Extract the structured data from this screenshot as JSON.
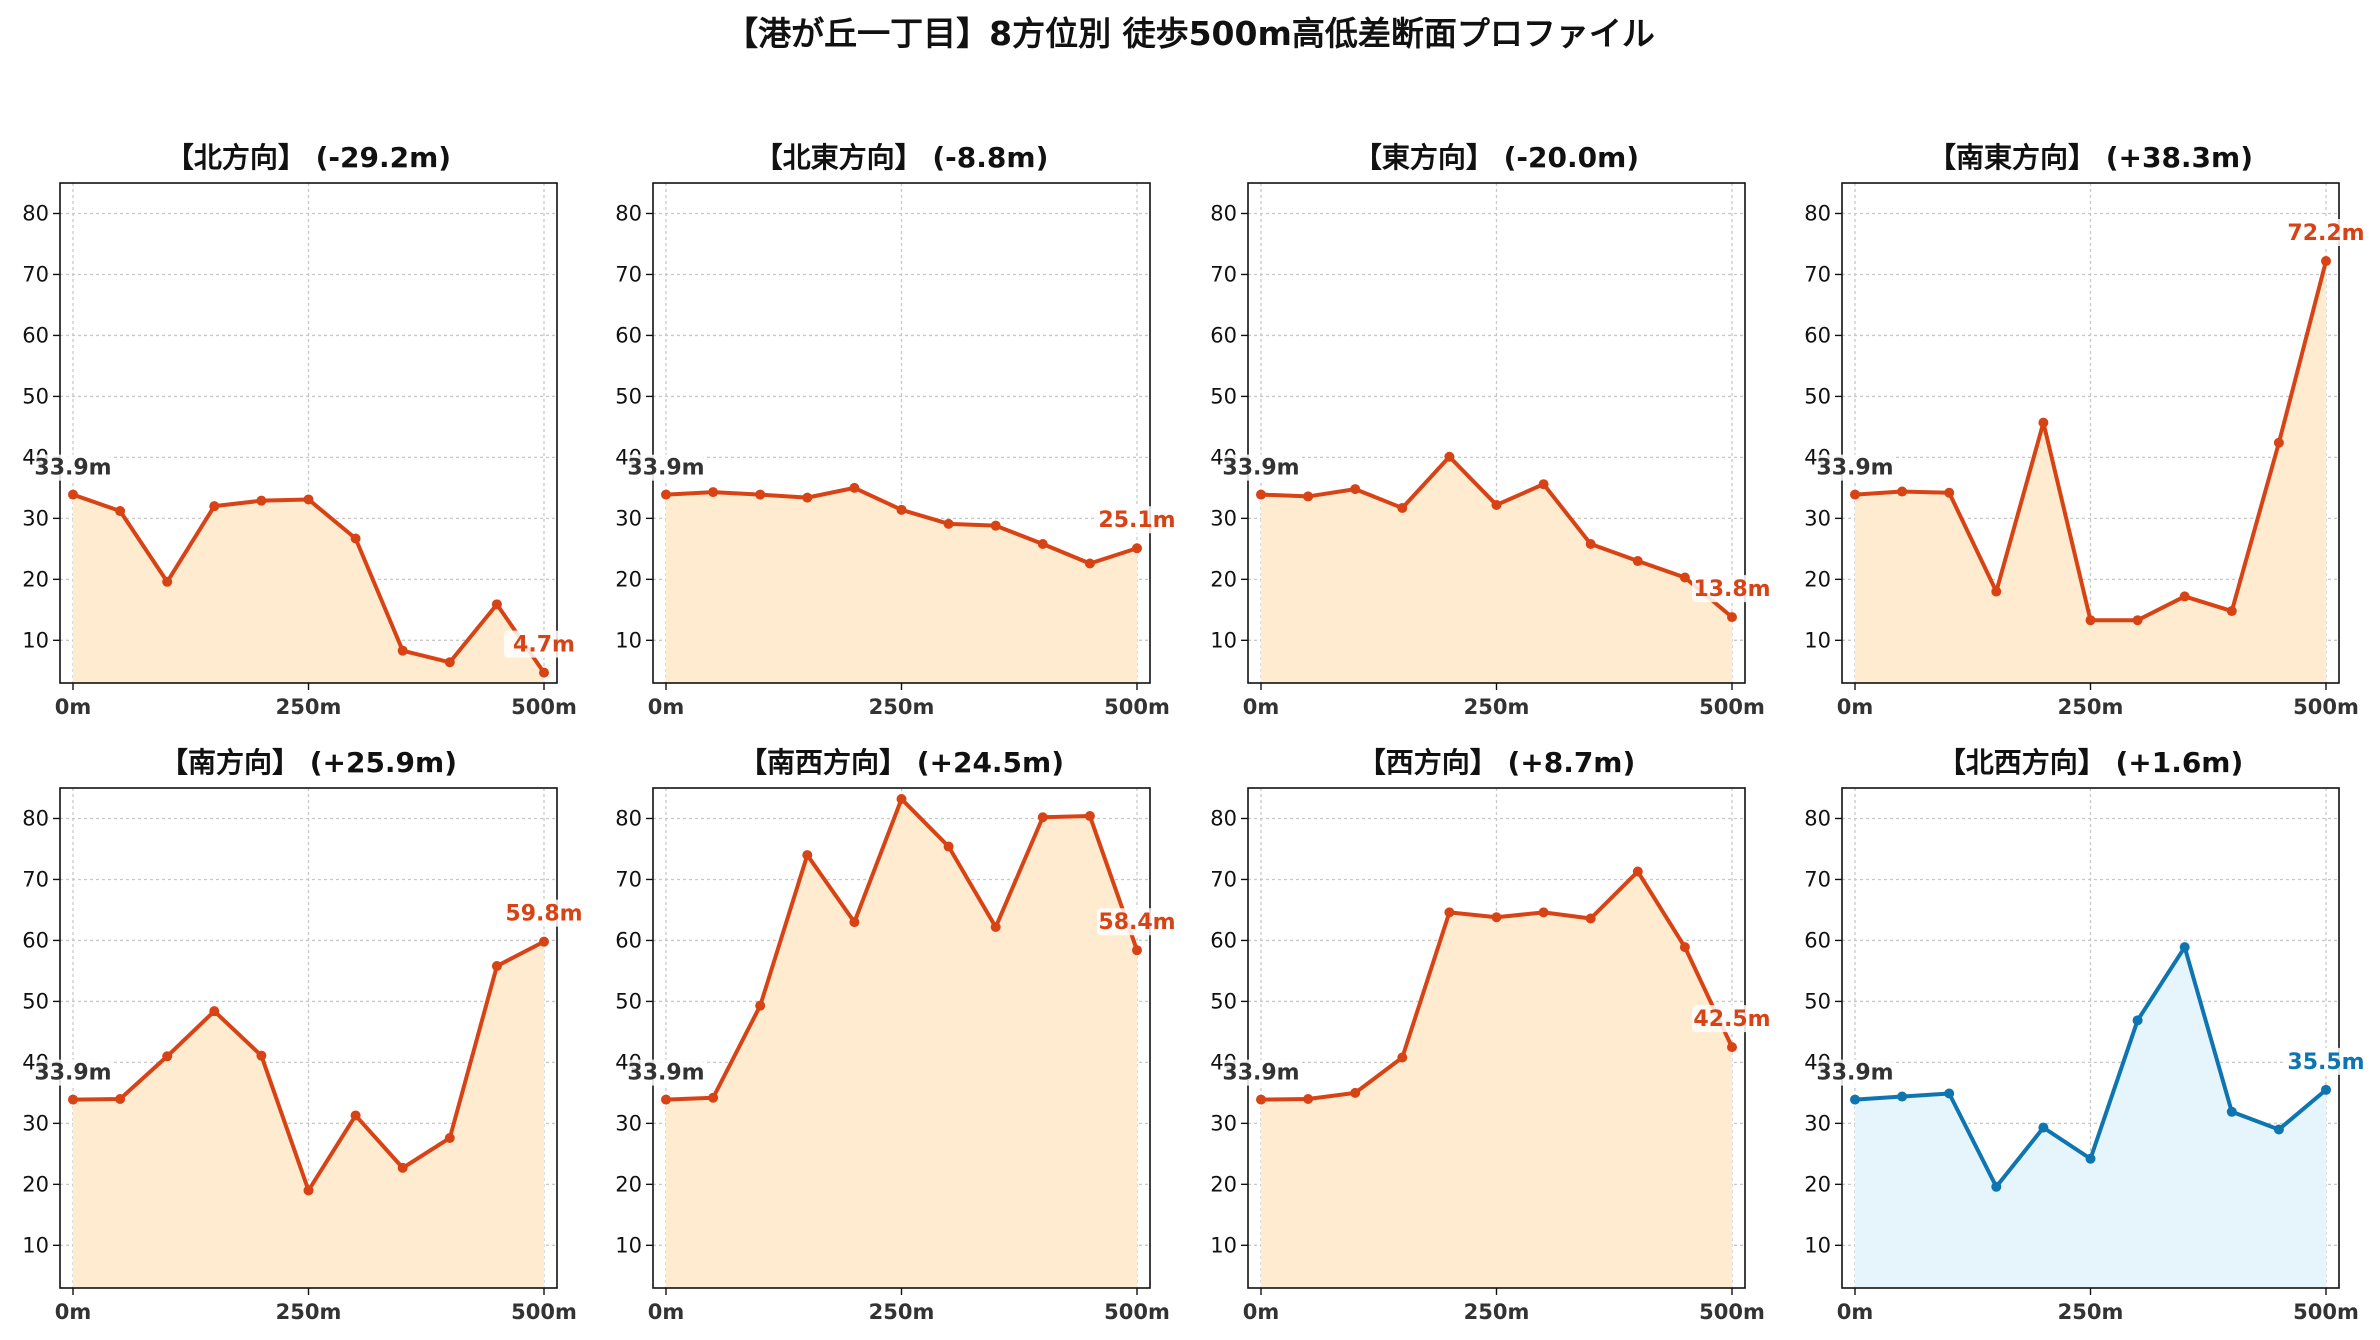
{
  "title": "【港が丘一丁目】8方位別 徒歩500m高低差断面プロファイル",
  "colors": {
    "down_line": "#d84315",
    "down_fill": "#ffebcf",
    "up_line": "#0f75b0",
    "up_fill": "#e6f4fb",
    "start_label": "#333333"
  },
  "chart_data": [
    {
      "type": "area",
      "title": "【北方向】 (-29.2m)",
      "x": [
        0,
        50,
        100,
        150,
        200,
        250,
        300,
        350,
        400,
        450,
        500
      ],
      "xticks": [
        "0m",
        "250m",
        "500m"
      ],
      "yticks": [
        "10",
        "20",
        "30",
        "40",
        "50",
        "60",
        "70",
        "80"
      ],
      "ylim": [
        3,
        85
      ],
      "values": [
        33.9,
        31.2,
        19.6,
        32.0,
        32.9,
        33.1,
        26.7,
        8.3,
        6.4,
        15.9,
        4.7
      ],
      "start_label": "33.9m",
      "end_label": "4.7m",
      "theme": "down"
    },
    {
      "type": "area",
      "title": "【北東方向】 (-8.8m)",
      "x": [
        0,
        50,
        100,
        150,
        200,
        250,
        300,
        350,
        400,
        450,
        500
      ],
      "xticks": [
        "0m",
        "250m",
        "500m"
      ],
      "yticks": [
        "10",
        "20",
        "30",
        "40",
        "50",
        "60",
        "70",
        "80"
      ],
      "ylim": [
        3,
        85
      ],
      "values": [
        33.9,
        34.3,
        33.9,
        33.4,
        35.0,
        31.4,
        29.1,
        28.8,
        25.8,
        22.6,
        25.1
      ],
      "start_label": "33.9m",
      "end_label": "25.1m",
      "theme": "down"
    },
    {
      "type": "area",
      "title": "【東方向】 (-20.0m)",
      "x": [
        0,
        50,
        100,
        150,
        200,
        250,
        300,
        350,
        400,
        450,
        500
      ],
      "xticks": [
        "0m",
        "250m",
        "500m"
      ],
      "yticks": [
        "10",
        "20",
        "30",
        "40",
        "50",
        "60",
        "70",
        "80"
      ],
      "ylim": [
        3,
        85
      ],
      "values": [
        33.9,
        33.6,
        34.8,
        31.7,
        40.1,
        32.2,
        35.6,
        25.8,
        23.0,
        20.3,
        13.8
      ],
      "start_label": "33.9m",
      "end_label": "13.8m",
      "theme": "down"
    },
    {
      "type": "area",
      "title": "【南東方向】 (+38.3m)",
      "x": [
        0,
        50,
        100,
        150,
        200,
        250,
        300,
        350,
        400,
        450,
        500
      ],
      "xticks": [
        "0m",
        "250m",
        "500m"
      ],
      "yticks": [
        "10",
        "20",
        "30",
        "40",
        "50",
        "60",
        "70",
        "80"
      ],
      "ylim": [
        3,
        85
      ],
      "values": [
        33.9,
        34.4,
        34.2,
        18.0,
        45.7,
        13.3,
        13.3,
        17.2,
        14.8,
        42.4,
        72.2
      ],
      "start_label": "33.9m",
      "end_label": "72.2m",
      "theme": "down"
    },
    {
      "type": "area",
      "title": "【南方向】 (+25.9m)",
      "x": [
        0,
        50,
        100,
        150,
        200,
        250,
        300,
        350,
        400,
        450,
        500
      ],
      "xticks": [
        "0m",
        "250m",
        "500m"
      ],
      "yticks": [
        "10",
        "20",
        "30",
        "40",
        "50",
        "60",
        "70",
        "80"
      ],
      "ylim": [
        3,
        85
      ],
      "values": [
        33.9,
        34.0,
        41.0,
        48.4,
        41.1,
        19.0,
        31.3,
        22.7,
        27.6,
        55.8,
        59.8
      ],
      "start_label": "33.9m",
      "end_label": "59.8m",
      "theme": "down"
    },
    {
      "type": "area",
      "title": "【南西方向】 (+24.5m)",
      "x": [
        0,
        50,
        100,
        150,
        200,
        250,
        300,
        350,
        400,
        450,
        500
      ],
      "xticks": [
        "0m",
        "250m",
        "500m"
      ],
      "yticks": [
        "10",
        "20",
        "30",
        "40",
        "50",
        "60",
        "70",
        "80"
      ],
      "ylim": [
        3,
        85
      ],
      "values": [
        33.9,
        34.2,
        49.3,
        74.0,
        63.0,
        83.2,
        75.4,
        62.2,
        80.2,
        80.4,
        58.4
      ],
      "start_label": "33.9m",
      "end_label": "58.4m",
      "theme": "down"
    },
    {
      "type": "area",
      "title": "【西方向】 (+8.7m)",
      "x": [
        0,
        50,
        100,
        150,
        200,
        250,
        300,
        350,
        400,
        450,
        500
      ],
      "xticks": [
        "0m",
        "250m",
        "500m"
      ],
      "yticks": [
        "10",
        "20",
        "30",
        "40",
        "50",
        "60",
        "70",
        "80"
      ],
      "ylim": [
        3,
        85
      ],
      "values": [
        33.9,
        34.0,
        35.0,
        40.8,
        64.6,
        63.8,
        64.6,
        63.6,
        71.3,
        58.9,
        42.5
      ],
      "start_label": "33.9m",
      "end_label": "42.5m",
      "theme": "down"
    },
    {
      "type": "area",
      "title": "【北西方向】 (+1.6m)",
      "x": [
        0,
        50,
        100,
        150,
        200,
        250,
        300,
        350,
        400,
        450,
        500
      ],
      "xticks": [
        "0m",
        "250m",
        "500m"
      ],
      "yticks": [
        "10",
        "20",
        "30",
        "40",
        "50",
        "60",
        "70",
        "80"
      ],
      "ylim": [
        3,
        85
      ],
      "values": [
        33.9,
        34.4,
        34.9,
        19.6,
        29.3,
        24.2,
        46.9,
        58.9,
        31.9,
        29.0,
        35.5
      ],
      "start_label": "33.9m",
      "end_label": "35.5m",
      "theme": "up"
    }
  ]
}
